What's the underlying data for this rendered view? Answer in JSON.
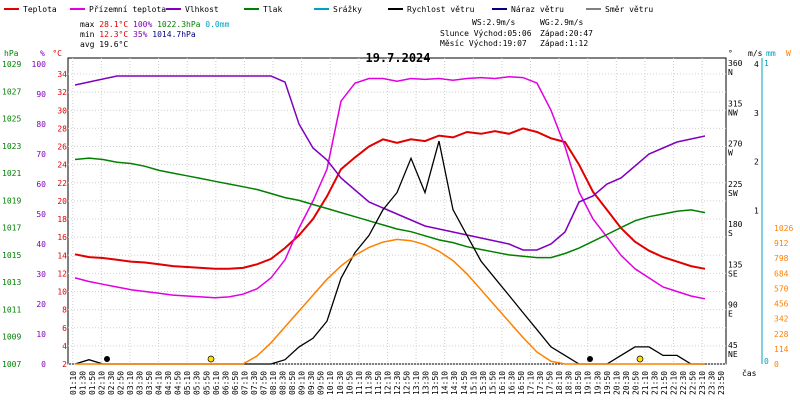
{
  "chart_data": {
    "type": "line",
    "title": "19.7.2024",
    "xlabel": "čas",
    "x_hours": [
      1,
      1.5,
      2,
      2.5,
      3,
      3.5,
      4,
      4.5,
      5,
      5.5,
      6,
      6.5,
      7,
      7.5,
      8,
      8.5,
      9,
      9.5,
      10,
      10.5,
      11,
      11.5,
      12,
      12.5,
      13,
      13.5,
      14,
      14.5,
      15,
      15.5,
      16,
      16.5,
      17,
      17.5,
      18,
      18.5,
      19,
      19.5,
      20,
      20.5,
      21,
      21.5,
      22,
      22.5,
      23,
      23.5
    ],
    "x_tick_labels": [
      "01:10",
      "01:30",
      "01:50",
      "02:10",
      "02:30",
      "02:50",
      "03:10",
      "03:30",
      "03:50",
      "04:10",
      "04:30",
      "04:50",
      "05:10",
      "05:30",
      "05:50",
      "06:10",
      "06:30",
      "06:50",
      "07:10",
      "07:30",
      "07:50",
      "08:10",
      "08:30",
      "08:50",
      "09:10",
      "09:30",
      "09:50",
      "10:10",
      "10:30",
      "10:50",
      "11:10",
      "11:30",
      "11:50",
      "12:10",
      "12:30",
      "12:50",
      "13:10",
      "13:30",
      "13:50",
      "14:10",
      "14:30",
      "14:50",
      "15:10",
      "15:30",
      "15:50",
      "16:10",
      "16:30",
      "16:50",
      "17:10",
      "17:30",
      "17:50",
      "18:10",
      "18:30",
      "18:50",
      "19:10",
      "19:30",
      "19:50",
      "20:10",
      "20:30",
      "20:50",
      "21:10",
      "21:30",
      "21:50",
      "22:10",
      "22:30",
      "22:50",
      "23:10",
      "23:30",
      "23:50"
    ],
    "series": [
      {
        "name": "Teplota",
        "color": "#e00000",
        "unit": "°C",
        "values": [
          14.1,
          13.8,
          13.7,
          13.5,
          13.3,
          13.2,
          13.0,
          12.8,
          12.7,
          12.6,
          12.5,
          12.5,
          12.6,
          13.0,
          13.6,
          14.8,
          16.2,
          18.0,
          20.5,
          23.5,
          24.8,
          26.0,
          26.8,
          26.4,
          26.8,
          26.6,
          27.2,
          27.0,
          27.6,
          27.4,
          27.7,
          27.4,
          28.0,
          27.6,
          26.9,
          26.5,
          24.0,
          21.0,
          19.0,
          17.0,
          15.5,
          14.5,
          13.8,
          13.3,
          12.8,
          12.5
        ]
      },
      {
        "name": "Přízemní teplota",
        "color": "#e000e0",
        "unit": "°C",
        "values": [
          11.5,
          11.1,
          10.8,
          10.5,
          10.2,
          10.0,
          9.8,
          9.6,
          9.5,
          9.4,
          9.3,
          9.4,
          9.7,
          10.3,
          11.5,
          13.5,
          17.0,
          20.0,
          23.5,
          31.0,
          33.0,
          33.5,
          33.5,
          33.2,
          33.5,
          33.4,
          33.5,
          33.3,
          33.5,
          33.6,
          33.5,
          33.7,
          33.6,
          33.0,
          30.0,
          26.0,
          21.0,
          18.0,
          16.0,
          14.0,
          12.5,
          11.5,
          10.5,
          10.0,
          9.5,
          9.2
        ]
      },
      {
        "name": "Vlhkost",
        "color": "#8000c0",
        "unit": "%",
        "values": [
          93,
          94,
          95,
          96,
          96,
          96,
          96,
          96,
          96,
          96,
          96,
          96,
          96,
          96,
          96,
          94,
          80,
          72,
          68,
          62,
          58,
          54,
          52,
          50,
          48,
          46,
          45,
          44,
          43,
          42,
          41,
          40,
          38,
          38,
          40,
          44,
          54,
          56,
          60,
          62,
          66,
          70,
          72,
          74,
          75,
          76
        ]
      },
      {
        "name": "Tlak",
        "color": "#008000",
        "unit": "hPa",
        "values": [
          1022.0,
          1022.1,
          1022.0,
          1021.8,
          1021.7,
          1021.5,
          1021.2,
          1021.0,
          1020.8,
          1020.6,
          1020.4,
          1020.2,
          1020.0,
          1019.8,
          1019.5,
          1019.2,
          1019.0,
          1018.7,
          1018.4,
          1018.1,
          1017.8,
          1017.5,
          1017.2,
          1016.9,
          1016.7,
          1016.4,
          1016.1,
          1015.9,
          1015.6,
          1015.4,
          1015.2,
          1015.0,
          1014.9,
          1014.8,
          1014.8,
          1015.1,
          1015.5,
          1016.0,
          1016.5,
          1017.0,
          1017.5,
          1017.8,
          1018.0,
          1018.2,
          1018.3,
          1018.1
        ]
      },
      {
        "name": "Rychlost větru",
        "color": "#000000",
        "unit": "m/s",
        "values": [
          0,
          0.05,
          0,
          0,
          0,
          0,
          0,
          0,
          0,
          0,
          0,
          0,
          0,
          0,
          0,
          0.05,
          0.2,
          0.3,
          0.5,
          1.0,
          1.3,
          1.5,
          1.8,
          2.0,
          2.4,
          2.0,
          2.6,
          1.8,
          1.5,
          1.2,
          1.0,
          0.8,
          0.6,
          0.4,
          0.2,
          0.1,
          0,
          0,
          0,
          0.1,
          0.2,
          0.2,
          0.1,
          0.1,
          0,
          0
        ]
      },
      {
        "name": "Sluneční záření",
        "color": "#ff8000",
        "unit": "W/m²",
        "values": [
          0,
          0,
          0,
          0,
          0,
          0,
          0,
          0,
          0,
          0,
          0,
          0,
          0,
          60,
          160,
          280,
          400,
          520,
          640,
          740,
          820,
          880,
          920,
          940,
          930,
          900,
          850,
          780,
          680,
          560,
          440,
          320,
          200,
          90,
          20,
          0,
          0,
          0,
          0,
          0,
          0,
          0,
          0,
          0,
          0,
          0
        ]
      }
    ],
    "legend": [
      "Teplota",
      "Přízemní teplota",
      "Vlhkost",
      "Tlak",
      "Srážky",
      "Rychlost větru",
      "Náraz větru",
      "Směr větru"
    ],
    "legend_colors": [
      "#e00000",
      "#e000e0",
      "#8000c0",
      "#008000",
      "#00a0c0",
      "#000000",
      "#000080",
      "#808080"
    ],
    "axes": {
      "temp": {
        "label": "°C",
        "color": "#e00000",
        "ticks": [
          "34",
          "32",
          "30",
          "28",
          "26",
          "24",
          "22",
          "20",
          "18",
          "16",
          "14",
          "12",
          "10",
          "8",
          "6",
          "4",
          "2"
        ]
      },
      "hum": {
        "label": "%",
        "color": "#8000c0",
        "ticks": [
          "100",
          "90",
          "80",
          "70",
          "60",
          "50",
          "40",
          "30",
          "20",
          "10",
          "0"
        ]
      },
      "press": {
        "label": "hPa",
        "color": "#008000",
        "ticks": [
          "1029",
          "1027",
          "1025",
          "1023",
          "1021",
          "1019",
          "1017",
          "1015",
          "1013",
          "1011",
          "1009",
          "1007"
        ]
      },
      "dir": {
        "label": "°",
        "ticks": [
          "360 N",
          "315 NW",
          "270 W",
          "225 SW",
          "180 S",
          "135 SE",
          "90 E",
          "45 NE"
        ]
      },
      "wind": {
        "label": "m/s",
        "ticks": [
          "4",
          "3",
          "2",
          "1"
        ]
      },
      "rain": {
        "label": "mm",
        "color": "#00a0c0",
        "ticks": [
          "1",
          "0"
        ]
      },
      "solar": {
        "label": "W",
        "color": "#ff8000",
        "ticks": [
          "1026",
          "912",
          "798",
          "684",
          "570",
          "456",
          "342",
          "228",
          "114",
          "0"
        ]
      }
    },
    "stats": {
      "max": {
        "label": "max",
        "temp": "28.1°C",
        "hum": "100%",
        "press": "1022.3hPa",
        "rain": "0.0mm"
      },
      "min": {
        "label": "min",
        "temp": "12.3°C",
        "hum": "35%",
        "press": "1014.7hPa"
      },
      "avg": {
        "label": "avg",
        "temp": "19.6°C"
      },
      "ws": "WS:2.9m/s",
      "wg": "WG:2.9m/s",
      "sun_rise": "Slunce Východ:05:06",
      "sun_set": "Západ:20:47",
      "moon_rise": "Měsíc  Východ:19:07",
      "moon_set": "Západ:1:12"
    }
  }
}
